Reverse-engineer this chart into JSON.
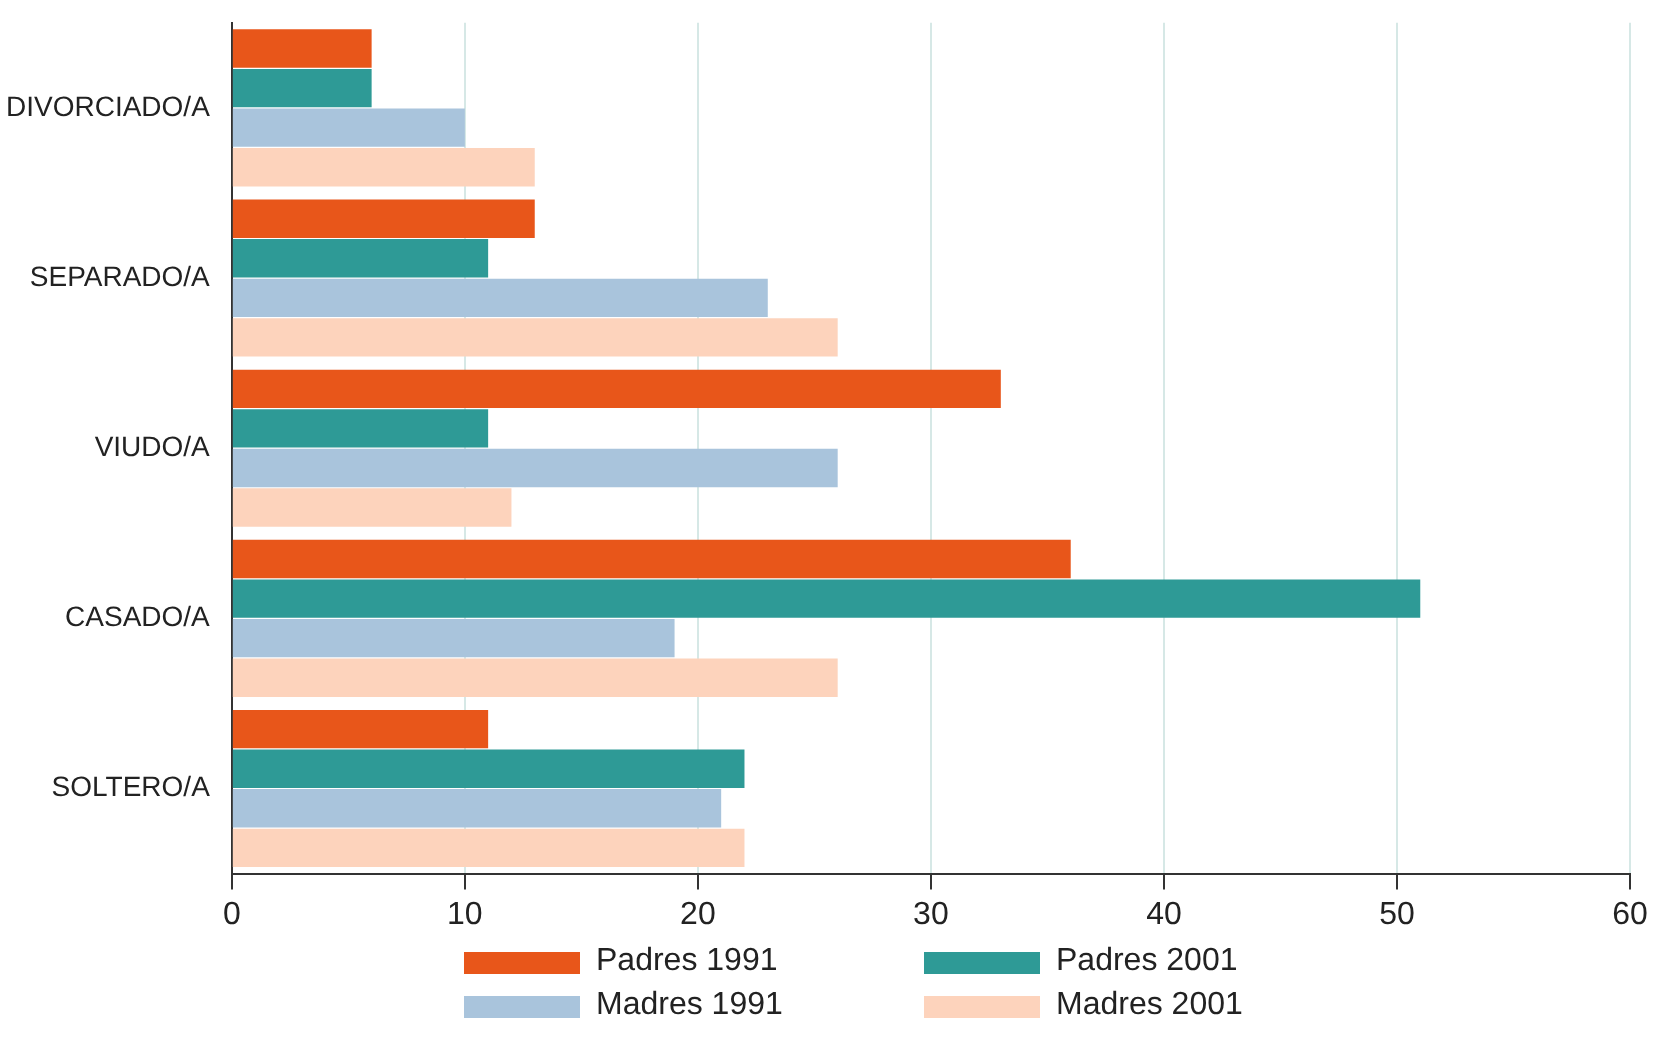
{
  "chart_data": {
    "type": "bar",
    "orientation": "horizontal",
    "categories": [
      "DIVORCIADO/A",
      "SEPARADO/A",
      "VIUDO/A",
      "CASADO/A",
      "SOLTERO/A"
    ],
    "series": [
      {
        "name": "Padres 1991",
        "color": "#e8561a",
        "values": [
          6,
          13,
          33,
          36,
          11
        ]
      },
      {
        "name": "Padres 2001",
        "color": "#2e9a96",
        "values": [
          6,
          11,
          11,
          51,
          22
        ]
      },
      {
        "name": "Madres 1991",
        "color": "#a9c4dc",
        "values": [
          10,
          23,
          26,
          19,
          21
        ]
      },
      {
        "name": "Madres 2001",
        "color": "#fdd3bc",
        "values": [
          13,
          26,
          12,
          26,
          22
        ]
      }
    ],
    "xlim": [
      0,
      60
    ],
    "xticks": [
      0,
      10,
      20,
      30,
      40,
      50,
      60
    ],
    "grid": "x",
    "legend": "bottom"
  }
}
